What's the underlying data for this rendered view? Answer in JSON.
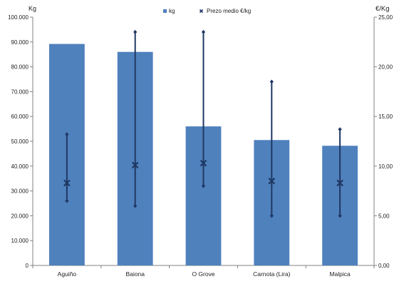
{
  "chart_data": {
    "type": "bar",
    "categories": [
      "Aguiño",
      "Baiona",
      "O Grove",
      "Carnota (Lira)",
      "Malpica"
    ],
    "series": [
      {
        "name": "kg",
        "type": "bar",
        "axis": "left",
        "values": [
          89200,
          86000,
          56000,
          50500,
          48200
        ]
      },
      {
        "name": "Prezo medio €/kg",
        "type": "point-range",
        "axis": "right",
        "mean": [
          8.3,
          10.1,
          10.3,
          8.5,
          8.3
        ],
        "min": [
          6.5,
          6.0,
          8.0,
          5.0,
          5.0
        ],
        "max": [
          13.2,
          23.5,
          23.5,
          18.5,
          13.7
        ]
      }
    ],
    "left_axis": {
      "label": "Kg",
      "ylim": [
        0,
        100000
      ],
      "ticks": [
        "0",
        "10.000",
        "20.000",
        "30.000",
        "40.000",
        "50.000",
        "60.000",
        "70.000",
        "80.000",
        "90.000",
        "100.000"
      ]
    },
    "right_axis": {
      "label": "€/Kg",
      "ylim": [
        0,
        25
      ],
      "ticks": [
        "0,00",
        "5,00",
        "10,00",
        "15,00",
        "20,00",
        "25,00"
      ]
    },
    "grid": false,
    "legend_position": "top-center",
    "colors": {
      "bar": "#4F81BD",
      "range": "#1F3864",
      "axis": "#808080"
    }
  }
}
